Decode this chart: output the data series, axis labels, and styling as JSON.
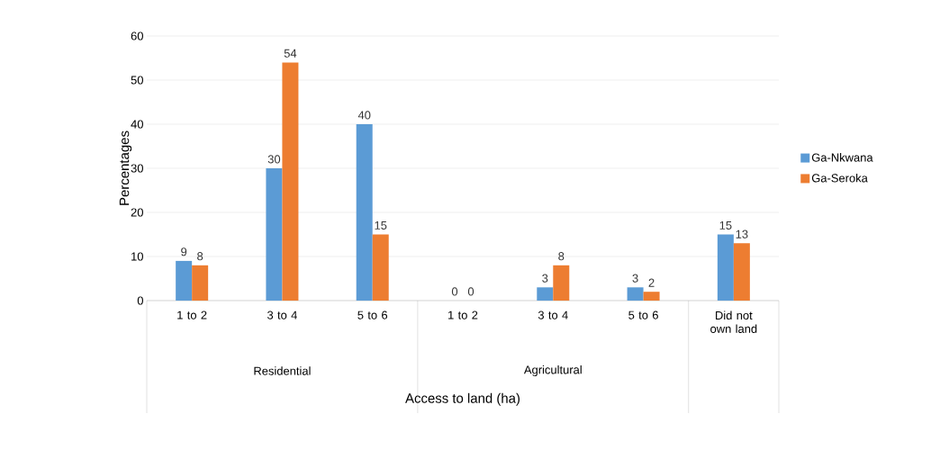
{
  "chart_data": {
    "type": "bar",
    "xlabel": "Access to land (ha)",
    "ylabel": "Percentages",
    "categories": [
      "1 to 2",
      "3 to 4",
      "5 to 6",
      "1 to 2",
      "3 to 4",
      "5 to 6",
      "Did not own land"
    ],
    "series": [
      {
        "name": "Ga-Nkwana",
        "color": "#5b9bd5",
        "values": [
          9,
          30,
          40,
          0,
          3,
          3,
          15
        ]
      },
      {
        "name": "Ga-Seroka",
        "color": "#ed7d31",
        "values": [
          8,
          54,
          15,
          0,
          8,
          2,
          13
        ]
      }
    ],
    "annotations": [
      "Residential",
      "Agricultural"
    ],
    "ylim": [
      0,
      60
    ],
    "yticks": [
      0,
      10,
      20,
      30,
      40,
      50,
      60
    ],
    "grid": "y",
    "legend": "right",
    "data_labels": true
  }
}
